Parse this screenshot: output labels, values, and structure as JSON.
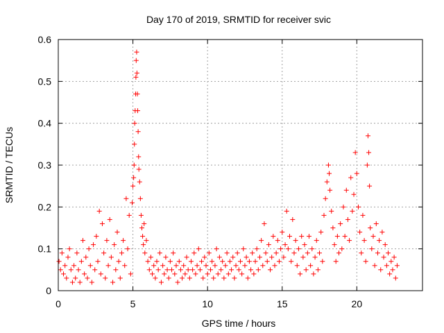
{
  "chart_data": {
    "type": "scatter",
    "title": "Day 170 of 2019, SRMTID for receiver svic",
    "xlabel": "GPS time / hours",
    "ylabel": "SRMTID / TECUs",
    "xlim": [
      0,
      24.4
    ],
    "ylim": [
      0,
      0.6
    ],
    "x_ticks": [
      0,
      5,
      10,
      15,
      20
    ],
    "x_tick_labels": [
      "0",
      "5",
      "10",
      "15",
      "20"
    ],
    "y_ticks": [
      0,
      0.1,
      0.2,
      0.3,
      0.4,
      0.5,
      0.6
    ],
    "y_tick_labels": [
      "0",
      "0.1",
      "0.2",
      "0.3",
      "0.4",
      "0.5",
      "0.6"
    ],
    "grid": true,
    "marker": "+",
    "series_color": "#ff0000",
    "series": [
      {
        "name": "SRMTID",
        "points": [
          [
            0.05,
            0.07
          ],
          [
            0.15,
            0.05
          ],
          [
            0.25,
            0.09
          ],
          [
            0.35,
            0.04
          ],
          [
            0.45,
            0.06
          ],
          [
            0.55,
            0.03
          ],
          [
            0.65,
            0.08
          ],
          [
            0.75,
            0.1
          ],
          [
            0.85,
            0.05
          ],
          [
            0.95,
            0.02
          ],
          [
            1.05,
            0.06
          ],
          [
            1.15,
            0.03
          ],
          [
            1.25,
            0.09
          ],
          [
            1.35,
            0.05
          ],
          [
            1.45,
            0.02
          ],
          [
            1.55,
            0.07
          ],
          [
            1.65,
            0.12
          ],
          [
            1.75,
            0.04
          ],
          [
            1.85,
            0.08
          ],
          [
            1.95,
            0.03
          ],
          [
            2.05,
            0.1
          ],
          [
            2.15,
            0.06
          ],
          [
            2.25,
            0.02
          ],
          [
            2.35,
            0.11
          ],
          [
            2.45,
            0.05
          ],
          [
            2.55,
            0.13
          ],
          [
            2.65,
            0.07
          ],
          [
            2.75,
            0.19
          ],
          [
            2.85,
            0.04
          ],
          [
            2.95,
            0.16
          ],
          [
            3.05,
            0.09
          ],
          [
            3.15,
            0.03
          ],
          [
            3.25,
            0.12
          ],
          [
            3.35,
            0.06
          ],
          [
            3.45,
            0.17
          ],
          [
            3.55,
            0.08
          ],
          [
            3.65,
            0.02
          ],
          [
            3.75,
            0.11
          ],
          [
            3.85,
            0.05
          ],
          [
            3.95,
            0.14
          ],
          [
            4.05,
            0.07
          ],
          [
            4.15,
            0.03
          ],
          [
            4.25,
            0.09
          ],
          [
            4.35,
            0.12
          ],
          [
            4.45,
            0.06
          ],
          [
            4.55,
            0.22
          ],
          [
            4.65,
            0.1
          ],
          [
            4.75,
            0.18
          ],
          [
            4.85,
            0.04
          ],
          [
            4.95,
            0.21
          ],
          [
            5.0,
            0.25
          ],
          [
            5.05,
            0.27
          ],
          [
            5.08,
            0.3
          ],
          [
            5.1,
            0.35
          ],
          [
            5.12,
            0.4
          ],
          [
            5.15,
            0.43
          ],
          [
            5.18,
            0.47
          ],
          [
            5.2,
            0.51
          ],
          [
            5.22,
            0.55
          ],
          [
            5.25,
            0.57
          ],
          [
            5.27,
            0.52
          ],
          [
            5.3,
            0.47
          ],
          [
            5.32,
            0.43
          ],
          [
            5.35,
            0.38
          ],
          [
            5.38,
            0.32
          ],
          [
            5.4,
            0.29
          ],
          [
            5.45,
            0.26
          ],
          [
            5.5,
            0.22
          ],
          [
            5.55,
            0.18
          ],
          [
            5.6,
            0.15
          ],
          [
            5.65,
            0.13
          ],
          [
            5.7,
            0.11
          ],
          [
            5.75,
            0.16
          ],
          [
            5.8,
            0.09
          ],
          [
            5.9,
            0.12
          ],
          [
            6.0,
            0.07
          ],
          [
            6.1,
            0.05
          ],
          [
            6.2,
            0.08
          ],
          [
            6.3,
            0.04
          ],
          [
            6.4,
            0.06
          ],
          [
            6.5,
            0.03
          ],
          [
            6.6,
            0.07
          ],
          [
            6.7,
            0.05
          ],
          [
            6.8,
            0.09
          ],
          [
            6.9,
            0.02
          ],
          [
            7.0,
            0.06
          ],
          [
            7.1,
            0.04
          ],
          [
            7.2,
            0.08
          ],
          [
            7.3,
            0.05
          ],
          [
            7.4,
            0.03
          ],
          [
            7.5,
            0.07
          ],
          [
            7.6,
            0.05
          ],
          [
            7.7,
            0.09
          ],
          [
            7.8,
            0.04
          ],
          [
            7.9,
            0.06
          ],
          [
            8.0,
            0.02
          ],
          [
            8.1,
            0.07
          ],
          [
            8.2,
            0.05
          ],
          [
            8.3,
            0.03
          ],
          [
            8.4,
            0.06
          ],
          [
            8.5,
            0.04
          ],
          [
            8.6,
            0.08
          ],
          [
            8.7,
            0.05
          ],
          [
            8.8,
            0.03
          ],
          [
            8.9,
            0.07
          ],
          [
            9.0,
            0.05
          ],
          [
            9.1,
            0.09
          ],
          [
            9.2,
            0.04
          ],
          [
            9.3,
            0.06
          ],
          [
            9.4,
            0.1
          ],
          [
            9.5,
            0.05
          ],
          [
            9.6,
            0.07
          ],
          [
            9.7,
            0.03
          ],
          [
            9.8,
            0.08
          ],
          [
            9.9,
            0.06
          ],
          [
            10.0,
            0.04
          ],
          [
            10.1,
            0.09
          ],
          [
            10.2,
            0.05
          ],
          [
            10.3,
            0.07
          ],
          [
            10.4,
            0.03
          ],
          [
            10.5,
            0.06
          ],
          [
            10.6,
            0.1
          ],
          [
            10.7,
            0.04
          ],
          [
            10.8,
            0.08
          ],
          [
            10.9,
            0.05
          ],
          [
            11.0,
            0.07
          ],
          [
            11.1,
            0.03
          ],
          [
            11.2,
            0.06
          ],
          [
            11.3,
            0.09
          ],
          [
            11.4,
            0.04
          ],
          [
            11.5,
            0.07
          ],
          [
            11.6,
            0.05
          ],
          [
            11.7,
            0.08
          ],
          [
            11.8,
            0.03
          ],
          [
            11.9,
            0.06
          ],
          [
            12.0,
            0.09
          ],
          [
            12.1,
            0.05
          ],
          [
            12.2,
            0.07
          ],
          [
            12.3,
            0.04
          ],
          [
            12.4,
            0.1
          ],
          [
            12.5,
            0.06
          ],
          [
            12.6,
            0.08
          ],
          [
            12.7,
            0.03
          ],
          [
            12.8,
            0.07
          ],
          [
            12.9,
            0.05
          ],
          [
            13.0,
            0.09
          ],
          [
            13.1,
            0.04
          ],
          [
            13.2,
            0.07
          ],
          [
            13.3,
            0.1
          ],
          [
            13.4,
            0.05
          ],
          [
            13.5,
            0.08
          ],
          [
            13.6,
            0.12
          ],
          [
            13.7,
            0.06
          ],
          [
            13.8,
            0.16
          ],
          [
            13.9,
            0.09
          ],
          [
            14.0,
            0.07
          ],
          [
            14.1,
            0.11
          ],
          [
            14.2,
            0.05
          ],
          [
            14.3,
            0.08
          ],
          [
            14.4,
            0.13
          ],
          [
            14.5,
            0.06
          ],
          [
            14.6,
            0.09
          ],
          [
            14.7,
            0.12
          ],
          [
            14.8,
            0.07
          ],
          [
            14.9,
            0.1
          ],
          [
            15.0,
            0.14
          ],
          [
            15.1,
            0.08
          ],
          [
            15.2,
            0.11
          ],
          [
            15.3,
            0.19
          ],
          [
            15.4,
            0.1
          ],
          [
            15.5,
            0.13
          ],
          [
            15.6,
            0.07
          ],
          [
            15.7,
            0.17
          ],
          [
            15.8,
            0.09
          ],
          [
            15.9,
            0.12
          ],
          [
            16.0,
            0.06
          ],
          [
            16.1,
            0.1
          ],
          [
            16.2,
            0.04
          ],
          [
            16.3,
            0.13
          ],
          [
            16.4,
            0.08
          ],
          [
            16.5,
            0.11
          ],
          [
            16.6,
            0.05
          ],
          [
            16.7,
            0.09
          ],
          [
            16.8,
            0.13
          ],
          [
            16.9,
            0.06
          ],
          [
            17.0,
            0.1
          ],
          [
            17.1,
            0.04
          ],
          [
            17.2,
            0.08
          ],
          [
            17.3,
            0.12
          ],
          [
            17.4,
            0.05
          ],
          [
            17.5,
            0.09
          ],
          [
            17.6,
            0.14
          ],
          [
            17.7,
            0.07
          ],
          [
            17.8,
            0.18
          ],
          [
            17.9,
            0.22
          ],
          [
            18.0,
            0.26
          ],
          [
            18.1,
            0.3
          ],
          [
            18.15,
            0.28
          ],
          [
            18.2,
            0.24
          ],
          [
            18.3,
            0.19
          ],
          [
            18.4,
            0.15
          ],
          [
            18.5,
            0.11
          ],
          [
            18.6,
            0.07
          ],
          [
            18.7,
            0.13
          ],
          [
            18.8,
            0.09
          ],
          [
            18.9,
            0.16
          ],
          [
            19.0,
            0.1
          ],
          [
            19.1,
            0.2
          ],
          [
            19.2,
            0.13
          ],
          [
            19.3,
            0.24
          ],
          [
            19.4,
            0.17
          ],
          [
            19.5,
            0.12
          ],
          [
            19.6,
            0.27
          ],
          [
            19.7,
            0.19
          ],
          [
            19.8,
            0.23
          ],
          [
            19.9,
            0.33
          ],
          [
            20.0,
            0.28
          ],
          [
            20.1,
            0.2
          ],
          [
            20.2,
            0.14
          ],
          [
            20.3,
            0.09
          ],
          [
            20.4,
            0.18
          ],
          [
            20.5,
            0.12
          ],
          [
            20.6,
            0.07
          ],
          [
            20.7,
            0.3
          ],
          [
            20.75,
            0.37
          ],
          [
            20.8,
            0.33
          ],
          [
            20.85,
            0.25
          ],
          [
            20.9,
            0.15
          ],
          [
            21.0,
            0.1
          ],
          [
            21.1,
            0.13
          ],
          [
            21.2,
            0.06
          ],
          [
            21.3,
            0.16
          ],
          [
            21.4,
            0.09
          ],
          [
            21.5,
            0.12
          ],
          [
            21.6,
            0.05
          ],
          [
            21.7,
            0.14
          ],
          [
            21.8,
            0.08
          ],
          [
            21.9,
            0.11
          ],
          [
            22.0,
            0.06
          ],
          [
            22.1,
            0.09
          ],
          [
            22.2,
            0.04
          ],
          [
            22.3,
            0.07
          ],
          [
            22.4,
            0.05
          ],
          [
            22.5,
            0.08
          ],
          [
            22.6,
            0.03
          ],
          [
            22.7,
            0.06
          ]
        ]
      }
    ]
  }
}
